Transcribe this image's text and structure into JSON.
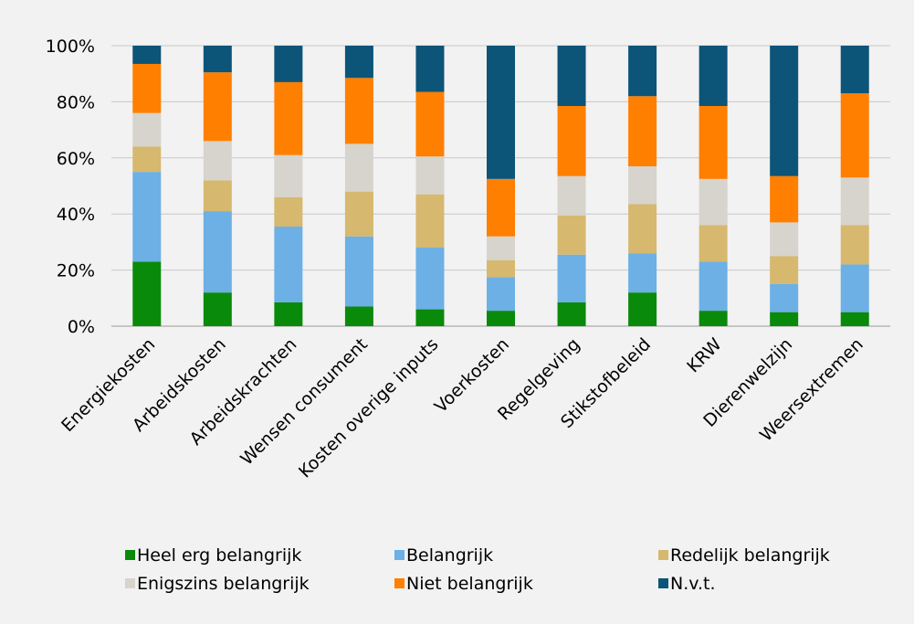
{
  "chart_data": {
    "type": "bar",
    "stacked": true,
    "title": "",
    "xlabel": "",
    "ylabel": "",
    "ylim": [
      0,
      100
    ],
    "y_ticks": [
      0,
      20,
      40,
      60,
      80,
      100
    ],
    "y_tick_format": "{v}%",
    "grid": "horizontal",
    "legend_position": "bottom",
    "categories": [
      "Energiekosten",
      "Arbeidskosten",
      "Arbeidskrachten",
      "Wensen consument",
      "Kosten overige inputs",
      "Voerkosten",
      "Regelgeving",
      "Stikstofbeleid",
      "KRW",
      "Dierenwelzijn",
      "Weersextremen"
    ],
    "series": [
      {
        "name": "Heel erg belangrijk",
        "color": "#0a8a0a",
        "values": [
          23,
          12,
          8.5,
          7,
          6,
          5.5,
          8.5,
          12,
          5.5,
          5,
          5
        ]
      },
      {
        "name": "Belangrijk",
        "color": "#6cb0e6",
        "values": [
          32,
          29,
          27,
          25,
          22,
          12,
          17,
          14,
          17.5,
          10,
          17
        ]
      },
      {
        "name": "Redelijk belangrijk",
        "color": "#d6b86e",
        "values": [
          9,
          11,
          10.5,
          16,
          19,
          6,
          14,
          17.5,
          13,
          10,
          14
        ]
      },
      {
        "name": "Enigszins belangrijk",
        "color": "#d6d4cc",
        "values": [
          12,
          14,
          15,
          17,
          13.5,
          8.5,
          14,
          13.5,
          16.5,
          12,
          17
        ]
      },
      {
        "name": "Niet belangrijk",
        "color": "#ff7f00",
        "values": [
          17.5,
          24.5,
          26,
          23.5,
          23,
          20.5,
          25,
          25,
          26,
          16.5,
          30
        ]
      },
      {
        "name": "N.v.t.",
        "color": "#0c5478",
        "values": [
          6.5,
          9.5,
          13,
          11.5,
          16.5,
          47.5,
          21.5,
          18,
          21.5,
          46.5,
          17
        ]
      }
    ]
  }
}
